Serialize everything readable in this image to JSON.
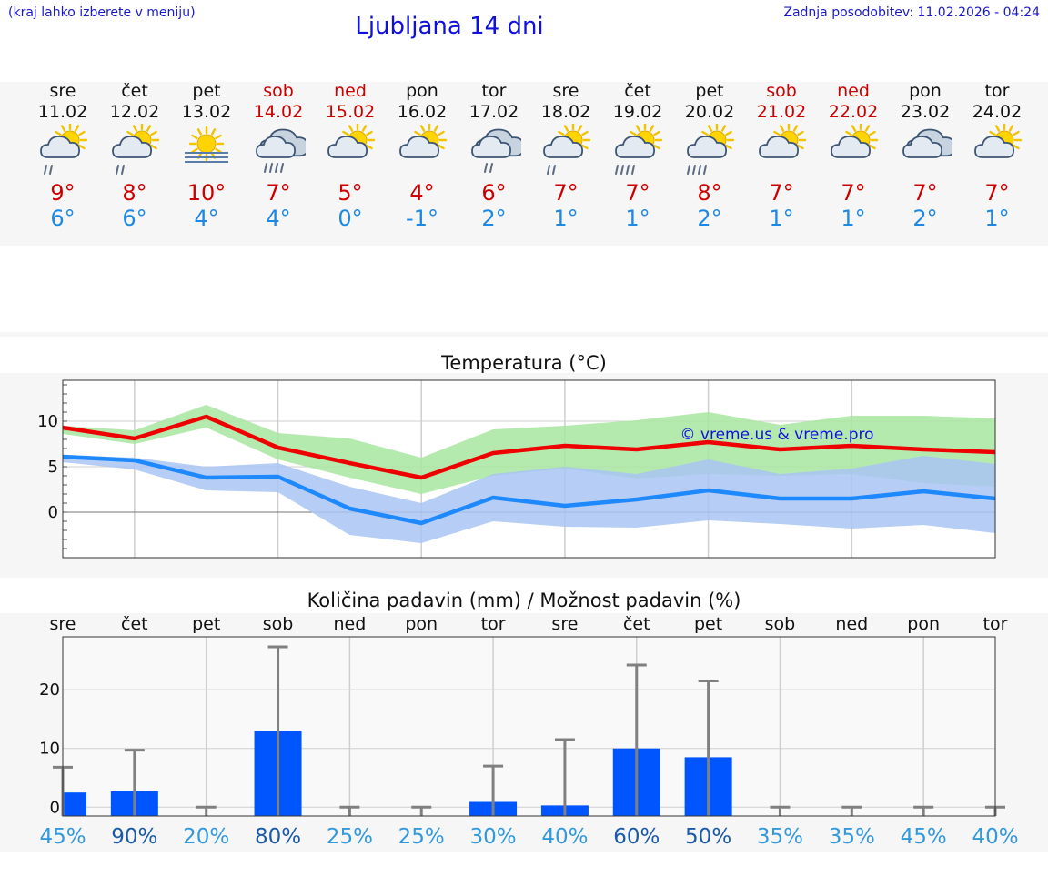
{
  "header": {
    "location_hint": "(kraj lahko izberete v meniju)",
    "title": "Ljubljana 14 dni",
    "updated": "Zadnja posodobitev: 11.02.2026 - 04:24"
  },
  "forecast": [
    {
      "day": "sre",
      "date": "11.02",
      "icon": "sun-cloud-light-rain-icon",
      "max": "9°",
      "min": "6°",
      "weekend": false
    },
    {
      "day": "čet",
      "date": "12.02",
      "icon": "sun-cloud-light-rain-icon",
      "max": "8°",
      "min": "6°",
      "weekend": false
    },
    {
      "day": "pet",
      "date": "13.02",
      "icon": "sun-fog-icon",
      "max": "10°",
      "min": "4°",
      "weekend": false
    },
    {
      "day": "sob",
      "date": "14.02",
      "icon": "cloud-rain-icon",
      "max": "7°",
      "min": "4°",
      "weekend": true
    },
    {
      "day": "ned",
      "date": "15.02",
      "icon": "sun-cloud-icon",
      "max": "5°",
      "min": "0°",
      "weekend": true
    },
    {
      "day": "pon",
      "date": "16.02",
      "icon": "sun-cloud-icon",
      "max": "4°",
      "min": "-1°",
      "weekend": false
    },
    {
      "day": "tor",
      "date": "17.02",
      "icon": "cloud-light-rain-icon",
      "max": "6°",
      "min": "2°",
      "weekend": false
    },
    {
      "day": "sre",
      "date": "18.02",
      "icon": "sun-cloud-light-rain-icon",
      "max": "7°",
      "min": "1°",
      "weekend": false
    },
    {
      "day": "čet",
      "date": "19.02",
      "icon": "sun-cloud-rain-icon",
      "max": "7°",
      "min": "1°",
      "weekend": false
    },
    {
      "day": "pet",
      "date": "20.02",
      "icon": "sun-cloud-rain-icon",
      "max": "8°",
      "min": "2°",
      "weekend": false
    },
    {
      "day": "sob",
      "date": "21.02",
      "icon": "sun-cloud-icon",
      "max": "7°",
      "min": "1°",
      "weekend": true
    },
    {
      "day": "ned",
      "date": "22.02",
      "icon": "sun-cloud-icon",
      "max": "7°",
      "min": "1°",
      "weekend": true
    },
    {
      "day": "pon",
      "date": "23.02",
      "icon": "cloud-icon",
      "max": "7°",
      "min": "2°",
      "weekend": false
    },
    {
      "day": "tor",
      "date": "24.02",
      "icon": "sun-cloud-icon",
      "max": "7°",
      "min": "1°",
      "weekend": false
    }
  ],
  "colors": {
    "max_line": "#ee0000",
    "min_line": "#1e88ff",
    "max_band": "#a8e6a0",
    "min_band": "#a9c4f5",
    "bar": "#0055ff",
    "weekend": "#cc0000",
    "whisker": "#808080"
  },
  "chart_data": [
    {
      "type": "line",
      "title": "Temperatura (°C)",
      "watermark": "© vreme.us & vreme.pro",
      "x": [
        0,
        1,
        2,
        3,
        4,
        5,
        6,
        7,
        8,
        9,
        10,
        11,
        12,
        13
      ],
      "ylim": [
        -5,
        14.5
      ],
      "yticks": [
        0,
        5,
        10
      ],
      "grid": true,
      "series": [
        {
          "values": [
            9.3,
            8.1,
            10.5,
            7.1,
            5.4,
            3.8,
            6.5,
            7.3,
            6.9,
            7.7,
            6.9,
            7.3,
            6.9,
            6.6
          ],
          "band_low": [
            8.6,
            7.5,
            9.3,
            5.8,
            3.8,
            2.0,
            4.0,
            4.8,
            3.7,
            4.2,
            4.0,
            4.2,
            3.2,
            2.8
          ],
          "band_high": [
            9.5,
            9.0,
            11.8,
            8.7,
            8.1,
            6.0,
            9.1,
            9.5,
            10.1,
            11.0,
            9.6,
            10.6,
            10.6,
            10.3
          ]
        },
        {
          "values": [
            6.1,
            5.7,
            3.8,
            3.9,
            0.4,
            -1.2,
            1.6,
            0.7,
            1.4,
            2.4,
            1.5,
            1.5,
            2.3,
            1.5
          ],
          "band_low": [
            5.5,
            4.7,
            2.4,
            2.2,
            -2.5,
            -3.4,
            -1.0,
            -1.6,
            -1.7,
            -0.9,
            -1.3,
            -1.8,
            -1.4,
            -2.3
          ],
          "band_high": [
            6.3,
            6.0,
            5.0,
            5.4,
            2.8,
            1.0,
            4.2,
            5.0,
            4.2,
            5.8,
            4.2,
            4.8,
            6.2,
            5.3
          ]
        }
      ]
    },
    {
      "type": "bar",
      "title": "Količina padavin (mm) / Možnost padavin (%)",
      "categories": [
        "sre",
        "čet",
        "pet",
        "sob",
        "ned",
        "pon",
        "tor",
        "sre",
        "čet",
        "pet",
        "sob",
        "ned",
        "pon",
        "tor"
      ],
      "values": [
        2.5,
        2.7,
        0,
        13,
        0,
        0,
        0.9,
        0.3,
        10,
        8.5,
        0,
        0,
        0,
        0
      ],
      "upper": [
        6.8,
        9.7,
        0,
        27.3,
        0,
        0,
        7,
        11.5,
        24.2,
        21.5,
        0,
        0,
        0,
        0
      ],
      "probability": [
        "45%",
        "90%",
        "20%",
        "80%",
        "25%",
        "25%",
        "30%",
        "40%",
        "60%",
        "50%",
        "35%",
        "35%",
        "45%",
        "40%"
      ],
      "probability_colors": [
        "#3399dd",
        "#1a5aa8",
        "#3399dd",
        "#1a5aa8",
        "#3399dd",
        "#3399dd",
        "#3399dd",
        "#3399dd",
        "#1a5aa8",
        "#1a5aa8",
        "#3399dd",
        "#3399dd",
        "#3399dd",
        "#3399dd"
      ],
      "ylim": [
        -1.5,
        29
      ],
      "yticks": [
        0,
        10,
        20
      ],
      "grid": true
    }
  ]
}
